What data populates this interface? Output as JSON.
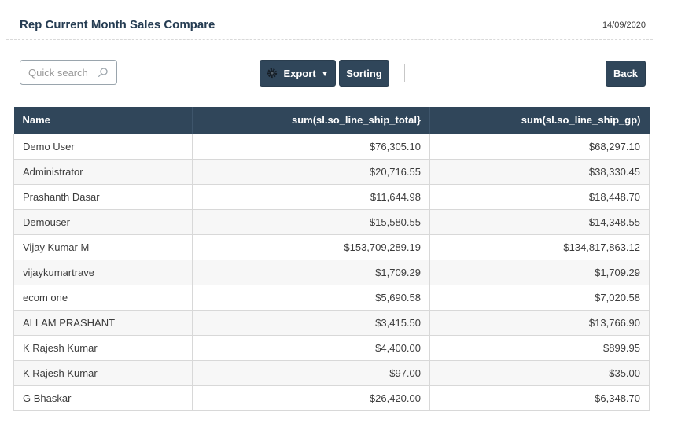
{
  "header": {
    "title": "Rep Current Month Sales Compare",
    "date": "14/09/2020"
  },
  "toolbar": {
    "search_placeholder": "Quick search",
    "export_label": "Export",
    "sorting_label": "Sorting",
    "back_label": "Back",
    "icons": {
      "search": "search-icon",
      "export_gear": "gear-icon",
      "export_caret": "chevron-down-icon"
    }
  },
  "table": {
    "columns": [
      "Name",
      "sum(sl.so_line_ship_total}",
      "sum(sl.so_line_ship_gp)"
    ],
    "rows": [
      [
        "Demo User",
        "$76,305.10",
        "$68,297.10"
      ],
      [
        "Administrator",
        "$20,716.55",
        "$38,330.45"
      ],
      [
        "Prashanth Dasar",
        "$11,644.98",
        "$18,448.70"
      ],
      [
        "Demouser",
        "$15,580.55",
        "$14,348.55"
      ],
      [
        "Vijay Kumar M",
        "$153,709,289.19",
        "$134,817,863.12"
      ],
      [
        "vijaykumartrave",
        "$1,709.29",
        "$1,709.29"
      ],
      [
        "ecom one",
        "$5,690.58",
        "$7,020.58"
      ],
      [
        "ALLAM PRASHANT",
        "$3,415.50",
        "$13,766.90"
      ],
      [
        "K Rajesh Kumar",
        "$4,400.00",
        "$899.95"
      ],
      [
        "K Rajesh Kumar",
        "$97.00",
        "$35.00"
      ],
      [
        "G Bhaskar",
        "$26,420.00",
        "$6,348.70"
      ]
    ]
  },
  "colors": {
    "accent": "#30465a",
    "accent_border": "#2a3d4e",
    "title": "#253c52",
    "row_stripe": "#f7f7f7",
    "grid": "#d8d8d8"
  }
}
